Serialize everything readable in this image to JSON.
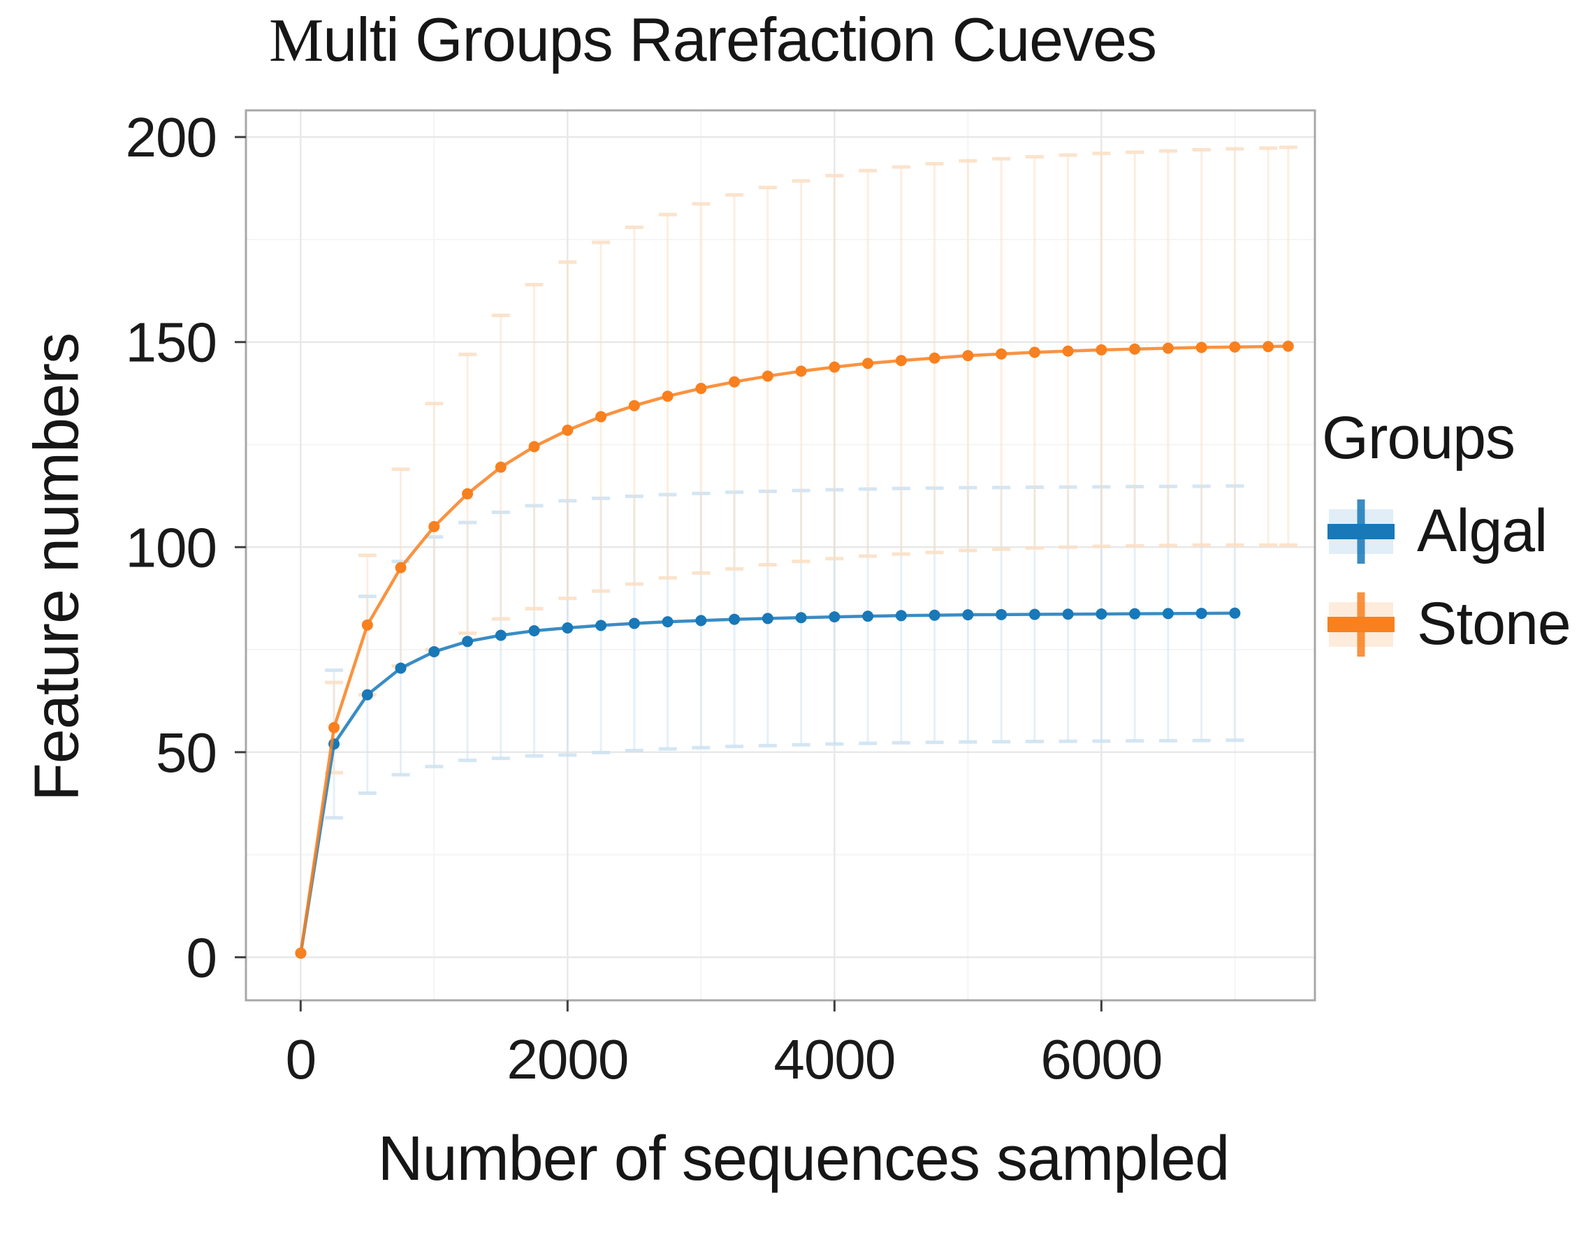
{
  "figure": {
    "title_first_letter": "M",
    "title_rest": "ulti Groups Rarefaction Cueves"
  },
  "legend": {
    "title": "Groups"
  },
  "chart_data": {
    "type": "line",
    "title": "Multi Groups Rarefaction Cueves",
    "xlabel": "Number of sequences sampled",
    "ylabel": "Feature numbers",
    "xticks": [
      0,
      2000,
      4000,
      6000
    ],
    "xticks_minor": [
      1000,
      3000,
      5000,
      7000
    ],
    "yticks": [
      0,
      50,
      100,
      150,
      200
    ],
    "yticks_minor": [
      25,
      75,
      125,
      175
    ],
    "xlim": [
      -410,
      7600
    ],
    "ylim": [
      -10.5,
      206.5
    ],
    "grid": true,
    "legend_position": "right",
    "series": [
      {
        "name": "Algal",
        "color": "#1878b8",
        "light": "#cde2f2",
        "x": [
          1,
          250,
          500,
          750,
          1000,
          1250,
          1500,
          1750,
          2000,
          2250,
          2500,
          2750,
          3000,
          3250,
          3500,
          3750,
          4000,
          4250,
          4500,
          4750,
          5000,
          5250,
          5500,
          5750,
          6000,
          6250,
          6500,
          6750,
          7000
        ],
        "y": [
          1,
          52,
          64,
          70.5,
          74.5,
          77,
          78.5,
          79.6,
          80.3,
          80.9,
          81.4,
          81.8,
          82.1,
          82.4,
          82.6,
          82.8,
          83,
          83.15,
          83.3,
          83.4,
          83.5,
          83.55,
          83.6,
          83.65,
          83.7,
          83.75,
          83.8,
          83.85,
          83.9
        ],
        "sd": [
          0,
          18,
          24,
          26,
          28,
          29,
          30,
          30.5,
          31,
          31,
          31,
          31,
          31,
          31,
          31,
          31,
          31,
          31,
          31,
          31,
          31,
          31,
          31,
          31,
          31,
          31,
          31,
          31,
          31
        ]
      },
      {
        "name": "Stone",
        "color": "#f8801e",
        "light": "#fbdfc4",
        "x": [
          1,
          250,
          500,
          750,
          1000,
          1250,
          1500,
          1750,
          2000,
          2250,
          2500,
          2750,
          3000,
          3250,
          3500,
          3750,
          4000,
          4250,
          4500,
          4750,
          5000,
          5250,
          5500,
          5750,
          6000,
          6250,
          6500,
          6750,
          7000,
          7250,
          7400
        ],
        "y": [
          1,
          56,
          81,
          95,
          105,
          113,
          119.5,
          124.5,
          128.5,
          131.8,
          134.5,
          136.8,
          138.7,
          140.3,
          141.7,
          142.9,
          143.9,
          144.8,
          145.5,
          146.1,
          146.7,
          147.1,
          147.5,
          147.8,
          148.1,
          148.3,
          148.5,
          148.7,
          148.8,
          148.9,
          149
        ],
        "sd": [
          0,
          11,
          17,
          24,
          30,
          34,
          37,
          39.5,
          41,
          42.5,
          43.5,
          44.3,
          45,
          45.6,
          46,
          46.4,
          46.7,
          47,
          47.2,
          47.4,
          47.5,
          47.6,
          47.7,
          47.8,
          47.9,
          48,
          48.1,
          48.2,
          48.3,
          48.4,
          48.5
        ]
      }
    ]
  }
}
